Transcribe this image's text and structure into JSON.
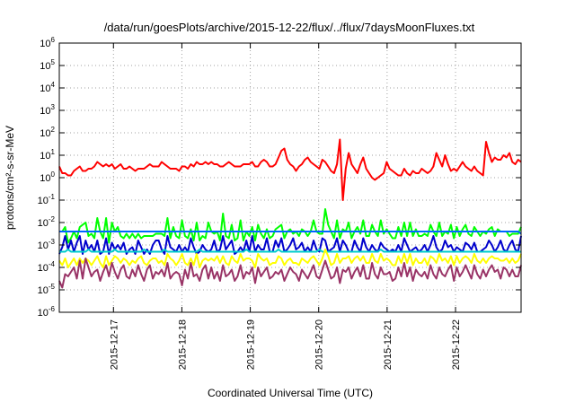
{
  "chart_data": {
    "type": "line",
    "title": "/data/run/goesPlots/archive/2015-12-22/flux/../flux/7daysMoonFluxes.txt",
    "xlabel": "Coordinated Universal Time (UTC)",
    "ylabel": "protons/cm²-s-sr-MeV",
    "y_scale": "log",
    "ylim": [
      1e-06,
      1000000.0
    ],
    "y_ticks": [
      {
        "base": "10",
        "exp": "-6"
      },
      {
        "base": "10",
        "exp": "-5"
      },
      {
        "base": "10",
        "exp": "-4"
      },
      {
        "base": "10",
        "exp": "-3"
      },
      {
        "base": "10",
        "exp": "-2"
      },
      {
        "base": "10",
        "exp": "-1"
      },
      {
        "base": "10",
        "exp": "0"
      },
      {
        "base": "10",
        "exp": "1"
      },
      {
        "base": "10",
        "exp": "2"
      },
      {
        "base": "10",
        "exp": "3"
      },
      {
        "base": "10",
        "exp": "4"
      },
      {
        "base": "10",
        "exp": "5"
      },
      {
        "base": "10",
        "exp": "6"
      }
    ],
    "x_ticks": [
      "2015-12-17",
      "2015-12-18",
      "2015-12-19",
      "2015-12-20",
      "2015-12-21",
      "2015-12-22"
    ],
    "xlim": [
      "2015-12-16T05:00",
      "2015-12-22T23:00"
    ],
    "grid": true,
    "series": [
      {
        "color": "#ff0000",
        "values": [
          0.5,
          0.2,
          0.2,
          0.1,
          0.1,
          0.3,
          0.4,
          0.5,
          0.3,
          0.3,
          0.4,
          0.4,
          0.5,
          0.7,
          0.6,
          0.5,
          0.6,
          0.5,
          0.6,
          0.4,
          0.5,
          0.6,
          0.4,
          0.4,
          0.5,
          0.4,
          0.3,
          0.4,
          0.4,
          0.4,
          0.5,
          0.6,
          0.5,
          0.5,
          0.5,
          0.7,
          0.6,
          0.5,
          0.4,
          0.4,
          0.4,
          0.3,
          0.5,
          0.5,
          0.4,
          0.6,
          0.5,
          0.7,
          0.6,
          0.6,
          0.7,
          0.6,
          0.7,
          0.6,
          0.6,
          0.5,
          0.5,
          0.6,
          0.7,
          0.6,
          0.5,
          0.5,
          0.5,
          0.6,
          0.6,
          0.6,
          0.7,
          0.5,
          0.5,
          0.7,
          0.8,
          0.7,
          0.5,
          0.5,
          0.6,
          0.9,
          1.2,
          1.3,
          0.8,
          0.6,
          0.5,
          0.3,
          0.5,
          0.6,
          0.8,
          0.9,
          0.7,
          0.6,
          0.5,
          0.4,
          0.8,
          0.7,
          0.5,
          0.3,
          0.2,
          0.6,
          1.7,
          -1.0,
          0.4,
          1.1,
          0.6,
          0.4,
          0.2,
          0.6,
          0.9,
          0.4,
          0.2,
          0.0,
          -0.1,
          0.0,
          0.1,
          0.2,
          0.7,
          0.4,
          0.3,
          0.2,
          0.1,
          0.1,
          0.4,
          0.2,
          0.1,
          0.3,
          0.2,
          0.2,
          0.4,
          0.3,
          0.2,
          0.3,
          0.5,
          1.1,
          0.8,
          0.5,
          1.0,
          0.6,
          0.3,
          0.4,
          0.3,
          0.5,
          0.7,
          0.5,
          0.4,
          0.3,
          0.5,
          0.3,
          0.2,
          0.1,
          1.6,
          1.1,
          0.7,
          0.9,
          0.8,
          0.8,
          1.0,
          0.9,
          1.1,
          0.7,
          0.6,
          0.8,
          0.7
        ]
      },
      {
        "color": "#00ff00",
        "values": [
          -2.4,
          -2.4,
          -2.2,
          -2.9,
          -2.7,
          -2.4,
          -2.7,
          -2.2,
          -2.1,
          -2.0,
          -2.6,
          -2.5,
          -2.7,
          -1.8,
          -2.4,
          -2.7,
          -1.8,
          -2.9,
          -2.0,
          -2.4,
          -2.2,
          -2.6,
          -2.7,
          -2.5,
          -2.7,
          -2.5,
          -2.7,
          -2.5,
          -2.7,
          -2.6,
          -2.6,
          -2.6,
          -2.6,
          -2.5,
          -2.5,
          -2.5,
          -2.6,
          -1.8,
          -2.7,
          -2.2,
          -2.6,
          -2.7,
          -1.9,
          -2.6,
          -2.7,
          -2.3,
          -2.8,
          -2.0,
          -2.8,
          -2.6,
          -2.7,
          -2.0,
          -2.4,
          -2.5,
          -2.4,
          -2.8,
          -1.6,
          -2.6,
          -2.7,
          -2.1,
          -2.8,
          -2.7,
          -1.9,
          -2.8,
          -2.4,
          -2.6,
          -2.2,
          -2.8,
          -2.1,
          -2.5,
          -2.7,
          -2.3,
          -2.7,
          -2.6,
          -2.3,
          -2.2,
          -2.1,
          -2.7,
          -2.4,
          -2.3,
          -2.5,
          -2.4,
          -2.6,
          -2.3,
          -2.4,
          -2.6,
          -2.4,
          -1.9,
          -2.4,
          -2.5,
          -2.5,
          -1.4,
          -2.1,
          -2.4,
          -2.7,
          -1.9,
          -2.7,
          -2.3,
          -2.4,
          -2.0,
          -2.7,
          -2.4,
          -2.2,
          -2.5,
          -1.9,
          -2.6,
          -2.6,
          -2.1,
          -2.4,
          -2.6,
          -1.9,
          -2.5,
          -2.3,
          -2.5,
          -2.7,
          -2.7,
          -2.2,
          -2.6,
          -2.0,
          -2.6,
          -2.0,
          -2.6,
          -2.3,
          -2.6,
          -2.6,
          -2.5,
          -2.6,
          -2.1,
          -2.4,
          -2.6,
          -2.0,
          -2.6,
          -2.4,
          -2.5,
          -2.1,
          -2.7,
          -2.2,
          -2.6,
          -2.3,
          -2.1,
          -2.5,
          -2.6,
          -2.2,
          -2.4,
          -2.6,
          -2.4,
          -2.5,
          -2.3,
          -2.2,
          -2.6,
          -2.3,
          -2.4,
          -2.4,
          -2.4,
          -2.6,
          -2.5,
          -2.5,
          -2.5,
          -2.2
        ]
      },
      {
        "color": "#0000cc",
        "values": [
          -3.4,
          -3.1,
          -2.6,
          -3.2,
          -2.8,
          -3.3,
          -2.9,
          -2.6,
          -3.4,
          -2.8,
          -3.2,
          -3.0,
          -3.3,
          -2.8,
          -3.4,
          -3.3,
          -2.7,
          -3.4,
          -2.9,
          -3.2,
          -3.0,
          -3.2,
          -2.9,
          -3.4,
          -3.2,
          -3.1,
          -3.4,
          -2.8,
          -3.1,
          -3.4,
          -3.2,
          -3.4,
          -3.0,
          -2.8,
          -2.8,
          -3.2,
          -3.4,
          -2.6,
          -3.1,
          -3.2,
          -3.3,
          -3.0,
          -3.3,
          -3.1,
          -3.3,
          -2.7,
          -3.1,
          -3.4,
          -3.3,
          -3.0,
          -3.2,
          -3.3,
          -3.2,
          -2.8,
          -3.3,
          -3.2,
          -2.6,
          -3.2,
          -3.0,
          -2.8,
          -3.4,
          -3.3,
          -3.1,
          -3.3,
          -2.8,
          -3.3,
          -2.6,
          -3.3,
          -3.0,
          -3.2,
          -3.2,
          -2.7,
          -3.3,
          -3.3,
          -2.8,
          -3.1,
          -2.7,
          -3.3,
          -3.2,
          -3.0,
          -2.7,
          -3.2,
          -3.1,
          -2.9,
          -3.3,
          -3.1,
          -3.3,
          -2.8,
          -3.2,
          -3.3,
          -2.7,
          -2.8,
          -3.3,
          -3.2,
          -3.1,
          -2.7,
          -3.3,
          -2.8,
          -3.0,
          -3.3,
          -3.3,
          -2.8,
          -3.1,
          -3.3,
          -2.7,
          -3.1,
          -3.3,
          -3.0,
          -3.2,
          -3.3,
          -2.9,
          -3.1,
          -3.2,
          -3.3,
          -3.2,
          -3.3,
          -3.0,
          -3.3,
          -2.7,
          -3.0,
          -3.3,
          -3.2,
          -3.1,
          -3.3,
          -3.2,
          -3.0,
          -3.3,
          -3.0,
          -2.6,
          -3.1,
          -3.3,
          -3.2,
          -2.8,
          -3.1,
          -3.0,
          -3.3,
          -3.1,
          -3.2,
          -3.3,
          -2.9,
          -3.0,
          -3.2,
          -2.9,
          -3.3,
          -3.3,
          -3.2,
          -3.1,
          -2.8,
          -3.0,
          -3.3,
          -3.1,
          -2.8,
          -3.2,
          -3.3,
          -3.0,
          -2.8,
          -3.2,
          -3.3,
          -2.6
        ]
      },
      {
        "color": "#0066ff",
        "values": [
          -2.4,
          -2.4,
          -2.4,
          -2.4,
          -2.4,
          -2.4,
          -2.4,
          -2.4,
          -2.4,
          -2.4,
          -2.4,
          -2.4,
          -2.4,
          -2.4,
          -2.4,
          -2.4,
          -2.4,
          -2.4,
          -2.4,
          -2.4,
          -2.4,
          -2.4,
          -2.4,
          -2.4,
          -2.4,
          -2.4,
          -2.4,
          -2.4,
          -2.4,
          -2.4,
          -2.4,
          -2.4,
          -2.4,
          -2.4,
          -2.4,
          -2.4,
          -2.4,
          -2.4,
          -2.4,
          -2.4,
          -2.4,
          -2.4,
          -2.4,
          -2.4,
          -2.4,
          -2.4,
          -2.4,
          -2.4,
          -2.4,
          -2.4,
          -2.4,
          -2.4,
          -2.4,
          -2.4,
          -2.4,
          -2.4,
          -2.4,
          -2.4,
          -2.4,
          -2.4,
          -2.4,
          -2.4,
          -2.4,
          -2.4,
          -2.4,
          -2.4,
          -2.4,
          -2.4,
          -2.4,
          -2.4,
          -2.4,
          -2.4,
          -2.4,
          -2.4,
          -2.4,
          -2.4,
          -2.4,
          -2.4,
          -2.4,
          -2.4,
          -2.4,
          -2.4,
          -2.4,
          -2.4,
          -2.4,
          -2.4,
          -2.4,
          -2.4,
          -2.4,
          -2.4,
          -2.4,
          -2.4,
          -2.4,
          -2.4,
          -2.4,
          -2.4,
          -2.4,
          -2.4,
          -2.4,
          -2.4,
          -2.4,
          -2.4,
          -2.4,
          -2.4,
          -2.4,
          -2.4,
          -2.4,
          -2.4,
          -2.4,
          -2.4,
          -2.4,
          -2.4,
          -2.4,
          -2.4,
          -2.4,
          -2.4,
          -2.4,
          -2.4,
          -2.4,
          -2.4,
          -2.4,
          -2.4,
          -2.4,
          -2.4,
          -2.4,
          -2.4,
          -2.4,
          -2.4,
          -2.4,
          -2.4,
          -2.4,
          -2.4,
          -2.4,
          -2.4,
          -2.4,
          -2.4,
          -2.4,
          -2.4,
          -2.4,
          -2.4,
          -2.4,
          -2.4,
          -2.4,
          -2.4,
          -2.4,
          -2.4,
          -2.4,
          -2.4,
          -2.4,
          -2.4,
          -2.4,
          -2.4,
          -2.4,
          -2.4,
          -2.4,
          -2.4,
          -2.4,
          -2.4,
          -2.5
        ]
      },
      {
        "color": "#00cccc",
        "values": [
          -3.3,
          -3.3,
          -3.3,
          -3.2,
          -3.3,
          -3.3,
          -3.3,
          -3.3,
          -3.3,
          -3.3,
          -3.2,
          -3.3,
          -3.3,
          -3.3,
          -3.3,
          -3.3,
          -3.3,
          -3.3,
          -3.3,
          -3.2,
          -3.3,
          -3.3,
          -3.3,
          -3.3,
          -3.3,
          -3.3,
          -3.3,
          -3.3,
          -3.3,
          -3.2,
          -3.3,
          -3.3,
          -3.3,
          -3.3,
          -3.3,
          -3.3,
          -3.2,
          -3.3,
          -3.3,
          -3.3,
          -3.3,
          -3.3,
          -3.3,
          -3.3,
          -3.3,
          -3.3,
          -3.3,
          -3.3,
          -3.2,
          -3.3,
          -3.3,
          -3.3,
          -3.3,
          -3.3,
          -3.3,
          -3.3,
          -3.3,
          -3.3,
          -3.3,
          -3.3,
          -3.3,
          -3.3,
          -3.3,
          -3.3,
          -3.2,
          -3.3,
          -3.3,
          -3.3,
          -3.3,
          -3.3,
          -3.3,
          -3.3,
          -3.3,
          -3.3,
          -3.3,
          -3.2,
          -3.3,
          -3.3,
          -3.3,
          -3.3,
          -3.3,
          -3.3,
          -3.3,
          -3.3,
          -3.3,
          -3.3,
          -3.3,
          -3.3,
          -3.3,
          -3.2,
          -3.3,
          -3.3,
          -3.3,
          -3.3,
          -3.3,
          -3.3,
          -3.3,
          -3.3,
          -3.3,
          -3.3,
          -3.3,
          -3.3,
          -3.3,
          -3.3,
          -3.3,
          -3.3,
          -3.3,
          -3.3,
          -3.3,
          -3.3,
          -3.2,
          -3.3,
          -3.3,
          -3.3,
          -3.3,
          -3.3,
          -3.3,
          -3.3,
          -3.3,
          -3.3,
          -3.3,
          -3.3,
          -3.3,
          -3.3,
          -3.3,
          -3.3,
          -3.3,
          -3.3,
          -3.3,
          -3.3,
          -3.3,
          -3.3,
          -3.3,
          -3.3,
          -3.3,
          -3.3,
          -3.3,
          -3.3,
          -3.3,
          -3.3,
          -3.3,
          -3.3,
          -3.3,
          -3.3,
          -3.3,
          -3.3,
          -3.3,
          -3.3,
          -3.3,
          -3.3,
          -3.3,
          -3.3,
          -3.3,
          -3.3,
          -3.3,
          -3.3,
          -3.3,
          -3.3,
          -3.3
        ]
      },
      {
        "color": "#ffff00",
        "values": [
          -3.7,
          -3.9,
          -3.6,
          -4.0,
          -3.8,
          -3.6,
          -3.9,
          -3.6,
          -3.8,
          -3.6,
          -3.7,
          -3.9,
          -3.7,
          -3.5,
          -3.8,
          -4.0,
          -3.5,
          -3.9,
          -3.7,
          -3.5,
          -3.6,
          -3.8,
          -3.6,
          -3.7,
          -3.9,
          -3.7,
          -3.8,
          -3.6,
          -3.5,
          -3.8,
          -3.9,
          -3.7,
          -3.6,
          -3.6,
          -3.8,
          -3.7,
          -3.9,
          -3.4,
          -3.6,
          -3.7,
          -3.9,
          -3.7,
          -3.4,
          -3.8,
          -3.9,
          -3.6,
          -3.9,
          -3.4,
          -4.0,
          -3.7,
          -3.6,
          -3.7,
          -3.6,
          -3.7,
          -3.5,
          -3.8,
          -3.5,
          -3.8,
          -3.9,
          -3.5,
          -3.7,
          -3.8,
          -3.4,
          -3.7,
          -3.6,
          -3.6,
          -3.7,
          -4.0,
          -3.4,
          -3.6,
          -3.7,
          -3.6,
          -3.9,
          -3.8,
          -3.8,
          -3.5,
          -3.6,
          -3.9,
          -3.7,
          -3.6,
          -3.8,
          -3.8,
          -3.9,
          -3.6,
          -3.7,
          -3.8,
          -3.6,
          -3.5,
          -3.7,
          -3.9,
          -3.6,
          -3.2,
          -3.5,
          -3.9,
          -3.8,
          -3.4,
          -3.8,
          -3.6,
          -3.6,
          -3.5,
          -3.8,
          -3.6,
          -3.5,
          -3.7,
          -3.5,
          -3.8,
          -3.8,
          -3.4,
          -3.7,
          -3.8,
          -3.4,
          -3.7,
          -3.6,
          -3.7,
          -3.9,
          -3.9,
          -3.5,
          -3.8,
          -3.4,
          -3.8,
          -3.4,
          -3.9,
          -3.6,
          -3.8,
          -3.8,
          -3.6,
          -3.9,
          -3.5,
          -3.6,
          -3.8,
          -3.4,
          -3.7,
          -3.6,
          -3.8,
          -3.5,
          -3.9,
          -3.5,
          -3.8,
          -3.6,
          -3.5,
          -3.6,
          -3.8,
          -3.4,
          -3.7,
          -3.8,
          -3.6,
          -3.8,
          -3.6,
          -3.5,
          -3.6,
          -3.6,
          -3.7,
          -3.7,
          -3.6,
          -3.8,
          -3.6,
          -3.8,
          -3.7,
          -3.4
        ]
      },
      {
        "color": "#993366",
        "values": [
          -4.6,
          -4.9,
          -4.3,
          -4.4,
          -4.2,
          -4.0,
          -4.5,
          -3.7,
          -4.5,
          -3.6,
          -4.0,
          -4.4,
          -4.2,
          -4.1,
          -4.6,
          -4.2,
          -3.9,
          -4.4,
          -3.8,
          -4.2,
          -4.5,
          -4.1,
          -3.9,
          -4.4,
          -4.5,
          -4.1,
          -4.4,
          -3.9,
          -4.3,
          -4.6,
          -4.1,
          -3.9,
          -4.5,
          -4.2,
          -4.3,
          -4.1,
          -4.4,
          -3.8,
          -4.5,
          -4.3,
          -4.2,
          -4.3,
          -4.8,
          -4.1,
          -4.5,
          -3.8,
          -4.4,
          -4.3,
          -4.6,
          -4.1,
          -3.9,
          -4.5,
          -4.0,
          -4.5,
          -4.2,
          -4.6,
          -3.9,
          -4.4,
          -4.3,
          -4.1,
          -4.6,
          -4.4,
          -3.9,
          -4.5,
          -4.2,
          -4.3,
          -4.0,
          -4.7,
          -4.0,
          -4.4,
          -4.2,
          -4.0,
          -4.5,
          -4.4,
          -4.2,
          -4.3,
          -4.1,
          -4.6,
          -4.3,
          -4.0,
          -4.2,
          -4.3,
          -4.6,
          -4.1,
          -4.3,
          -4.5,
          -4.2,
          -3.9,
          -4.4,
          -4.5,
          -4.1,
          -3.7,
          -4.1,
          -4.5,
          -4.4,
          -4.0,
          -4.7,
          -4.1,
          -4.2,
          -4.0,
          -4.5,
          -4.2,
          -4.0,
          -4.4,
          -3.9,
          -4.5,
          -4.5,
          -3.8,
          -4.3,
          -4.5,
          -4.0,
          -4.3,
          -4.3,
          -4.2,
          -4.6,
          -4.5,
          -4.0,
          -4.4,
          -3.8,
          -4.4,
          -4.0,
          -4.6,
          -4.1,
          -4.3,
          -4.4,
          -4.2,
          -4.5,
          -3.9,
          -4.3,
          -4.5,
          -4.0,
          -4.3,
          -4.4,
          -4.1,
          -3.9,
          -4.6,
          -4.0,
          -4.4,
          -4.2,
          -3.9,
          -4.2,
          -4.5,
          -3.9,
          -4.3,
          -4.5,
          -4.1,
          -4.4,
          -4.1,
          -3.9,
          -4.2,
          -4.1,
          -4.5,
          -4.0,
          -4.1,
          -4.4,
          -4.1,
          -4.4,
          -4.4,
          -3.9
        ]
      }
    ]
  }
}
